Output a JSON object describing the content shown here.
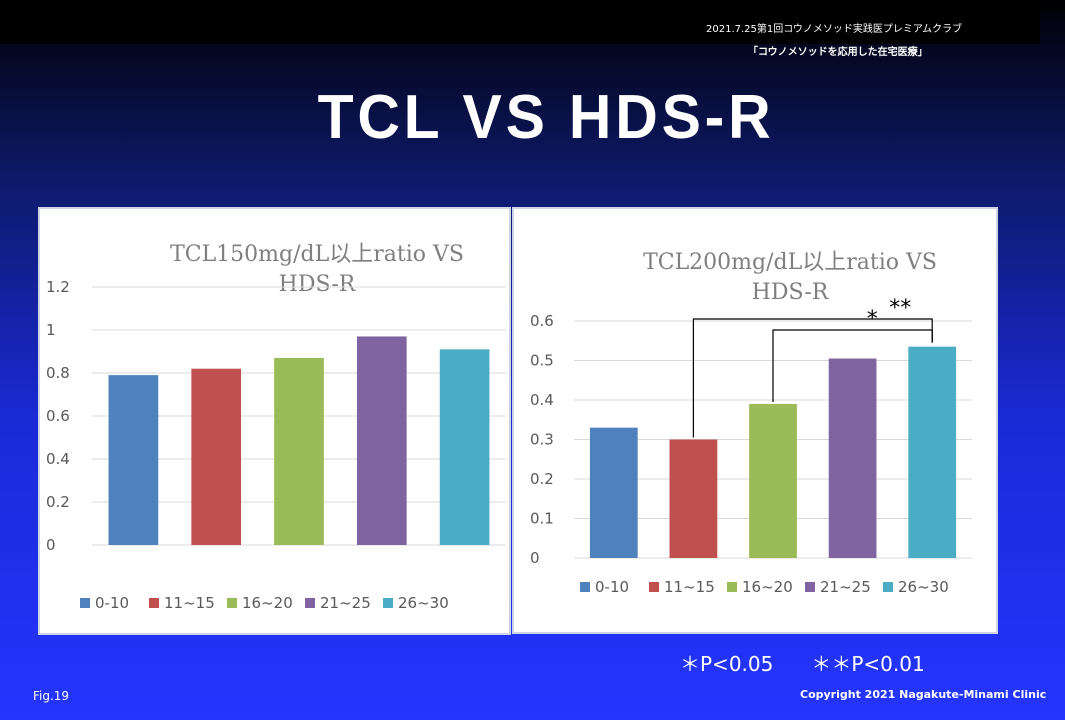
{
  "header": {
    "event": "2021.7.25第1回コウノメソッド実践医プレミアムクラブ",
    "subtitle": "「コウノメソッドを応用した在宅医療」"
  },
  "slide_title": "TCL VS HDS-R",
  "colors": [
    "#4f81bd",
    "#c0504d",
    "#9bbb59",
    "#8064a2",
    "#4bacc6"
  ],
  "chart_data": [
    {
      "type": "bar",
      "title_lines": [
        "TCL150mg/dL以上ratio VS",
        "HDS-R"
      ],
      "categories": [
        "0-10",
        "11~15",
        "16~20",
        "21~25",
        "26~30"
      ],
      "values": [
        0.79,
        0.82,
        0.87,
        0.97,
        0.91
      ],
      "ylim": [
        0,
        1.2
      ],
      "yticks": [
        "0",
        "0.2",
        "0.4",
        "0.6",
        "0.8",
        "1",
        "1.2"
      ],
      "grid": true,
      "legend": "bottom"
    },
    {
      "type": "bar",
      "title_lines": [
        "TCL200mg/dL以上ratio VS",
        "HDS-R"
      ],
      "categories": [
        "0-10",
        "11~15",
        "16~20",
        "21~25",
        "26~30"
      ],
      "values": [
        0.33,
        0.3,
        0.39,
        0.505,
        0.535
      ],
      "ylim": [
        0,
        0.6
      ],
      "yticks": [
        "0",
        "0.1",
        "0.2",
        "0.3",
        "0.4",
        "0.5",
        "0.6"
      ],
      "grid": true,
      "legend": "bottom",
      "annotations": [
        {
          "from": "11~15",
          "to": "26~30",
          "label": "**"
        },
        {
          "from": "16~20",
          "to": "26~30",
          "label": "*"
        }
      ]
    }
  ],
  "notes": {
    "p05": "＊P<0.05",
    "p01": "＊＊P<0.01"
  },
  "footer": {
    "fig": "Fig.19",
    "copyright": "Copyright 2021 Nagakute-Minami Clinic"
  }
}
